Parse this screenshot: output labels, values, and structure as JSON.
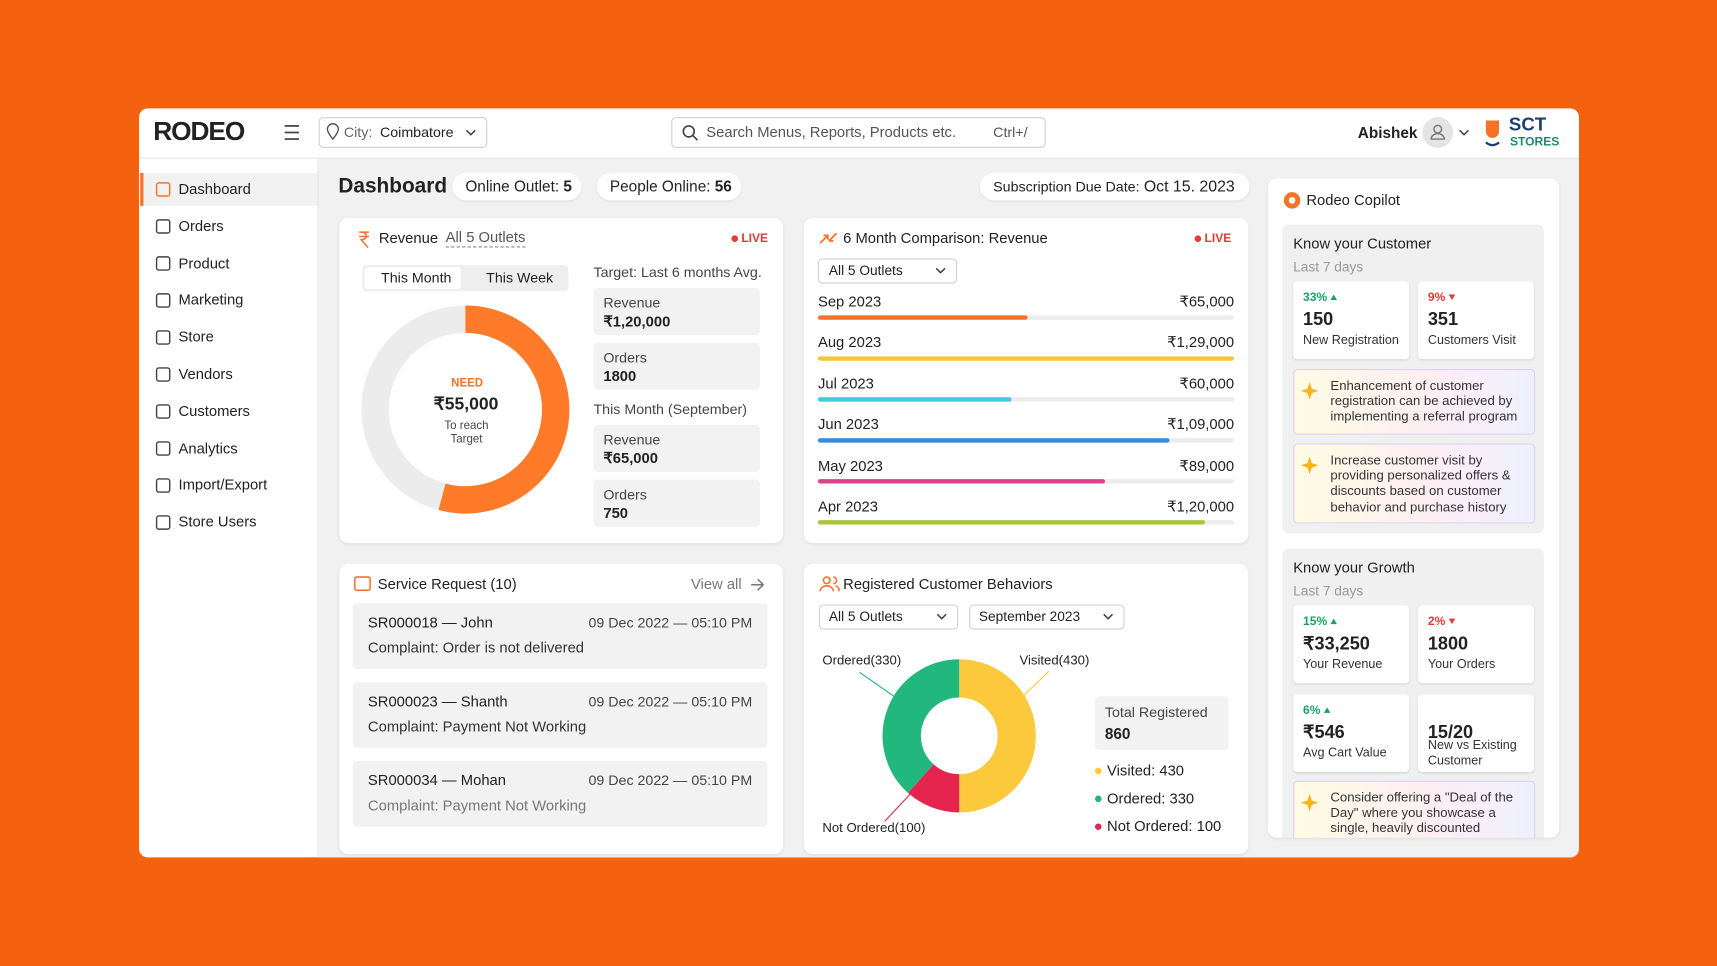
{
  "header": {
    "logo": "RODEO",
    "city_label": "City:",
    "city": "Coimbatore",
    "search_placeholder": "Search Menus, Reports, Products etc.",
    "search_shortcut": "Ctrl+/",
    "user_name": "Abishek",
    "store_brand": "SCT",
    "store_sub": "STORES"
  },
  "sidebar": {
    "items": [
      "Dashboard",
      "Orders",
      "Product",
      "Marketing",
      "Store",
      "Vendors",
      "Customers",
      "Analytics",
      "Import/Export",
      "Store Users"
    ],
    "active": 0
  },
  "toolbar": {
    "title": "Dashboard",
    "badges": [
      {
        "label": "Online Outlet:",
        "value": 5
      },
      {
        "label": "People Online:",
        "value": 56
      }
    ],
    "subscription": {
      "label": "Subscription Due Date:",
      "date": "Oct 15. 2023"
    }
  },
  "revenue": {
    "title": "Revenue",
    "scope": "All 5 Outlets",
    "status": "LIVE",
    "tabs": [
      "This Month",
      "This Week"
    ],
    "active_tab": 0,
    "donut": {
      "caption": "NEED",
      "value_label": "₹55,000",
      "note": "To reach Target"
    },
    "target": {
      "heading": "Target: Last 6 months Avg.",
      "revenue": {
        "label": "Revenue",
        "value": 120000,
        "value_label": "₹1,20,000"
      },
      "orders": {
        "label": "Orders",
        "value": 1800
      }
    },
    "current": {
      "heading": "This Month (September)",
      "revenue": {
        "label": "Revenue",
        "value": 65000,
        "value_label": "₹65,000"
      },
      "orders": {
        "label": "Orders",
        "value": 750
      }
    }
  },
  "comparison": {
    "title": "6 Month Comparison: Revenue",
    "status": "LIVE",
    "filter": "All 5 Outlets",
    "categories": [
      "Sep 2023",
      "Aug 2023",
      "Jul 2023",
      "Jun 2023",
      "May 2023",
      "Apr 2023"
    ],
    "values": [
      65000,
      129000,
      60000,
      109000,
      89000,
      120000
    ],
    "value_labels": [
      "₹65,000",
      "₹1,29,000",
      "₹60,000",
      "₹1,09,000",
      "₹89,000",
      "₹1,20,000"
    ],
    "colors": [
      "#f47328",
      "#f7c638",
      "#45c8dd",
      "#2f8de0",
      "#e2418a",
      "#a8c63a"
    ]
  },
  "service_requests": {
    "title": "Service Request (10)",
    "view_all": "View all",
    "items": [
      {
        "id": "SR000018 — John",
        "time": "09 Dec 2022 — 05:10 PM",
        "complaint": "Complaint: Order is not delivered"
      },
      {
        "id": "SR000023 — Shanth",
        "time": "09 Dec 2022 — 05:10 PM",
        "complaint": "Complaint: Payment Not Working"
      },
      {
        "id": "SR000034 — Mohan",
        "time": "09 Dec 2022 — 05:10 PM",
        "complaint": "Complaint: Payment Not Working"
      }
    ]
  },
  "customers": {
    "title": "Registered Customer Behaviors",
    "filters": [
      "All 5 Outlets",
      "September 2023"
    ],
    "total": {
      "label": "Total Registered",
      "value": 860
    },
    "segments": [
      {
        "value": 430,
        "callout": "Visited(430)",
        "legend": "Visited: 430",
        "color": "#fbc93b"
      },
      {
        "value": 330,
        "callout": "Ordered(330)",
        "legend": "Ordered: 330",
        "color": "#22b77c"
      },
      {
        "value": 100,
        "callout": "Not Ordered(100)",
        "legend": "Not Ordered: 100",
        "color": "#e6254f"
      }
    ]
  },
  "copilot": {
    "title": "Rodeo Copilot",
    "sections": [
      {
        "title": "Know your Customer",
        "period": "Last 7 days",
        "stats": [
          {
            "change": "33%",
            "trend": "up",
            "value": 150,
            "label": "New Registration"
          },
          {
            "change": "9%",
            "trend": "down",
            "value": 351,
            "label": "Customers Visit"
          }
        ],
        "tips": [
          "Enhancement of customer registration can be achieved by implementing a referral program",
          "Increase customer visit by providing personalized offers & discounts based on customer behavior and purchase history"
        ]
      },
      {
        "title": "Know your Growth",
        "period": "Last 7 days",
        "stats": [
          {
            "change": "15%",
            "trend": "up",
            "value": "₹33,250",
            "label": "Your Revenue"
          },
          {
            "change": "2%",
            "trend": "down",
            "value": 1800,
            "label": "Your Orders"
          },
          {
            "change": "6%",
            "trend": "up",
            "value": "₹546",
            "label": "Avg Cart Value"
          },
          {
            "value": "15/20",
            "label": "New vs Existing Customer"
          }
        ],
        "tips": [
          "Consider offering a \"Deal of the Day\" where you showcase a single, heavily discounted"
        ]
      }
    ]
  }
}
